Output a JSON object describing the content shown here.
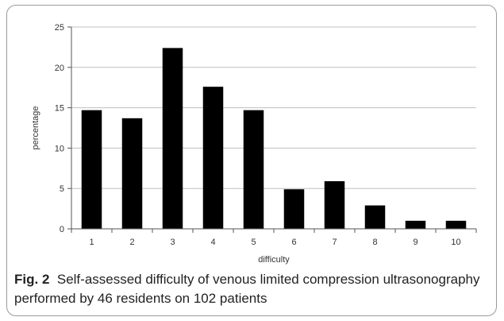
{
  "chart_data": {
    "type": "bar",
    "categories": [
      "1",
      "2",
      "3",
      "4",
      "5",
      "6",
      "7",
      "8",
      "9",
      "10"
    ],
    "values": [
      14.7,
      13.7,
      22.4,
      17.6,
      14.7,
      4.9,
      5.9,
      2.9,
      1.0,
      1.0
    ],
    "xlabel": "difficulty",
    "ylabel": "percentage",
    "ylim": [
      0,
      25
    ],
    "yticks": [
      0,
      5,
      10,
      15,
      20,
      25
    ],
    "grid": true,
    "bar_color": "#000000",
    "grid_color": "#bfbfbf"
  },
  "caption": {
    "label": "Fig. 2",
    "text": "Self-assessed difficulty of venous limited compression ultrasonography performed by 46 residents on 102 patients"
  }
}
